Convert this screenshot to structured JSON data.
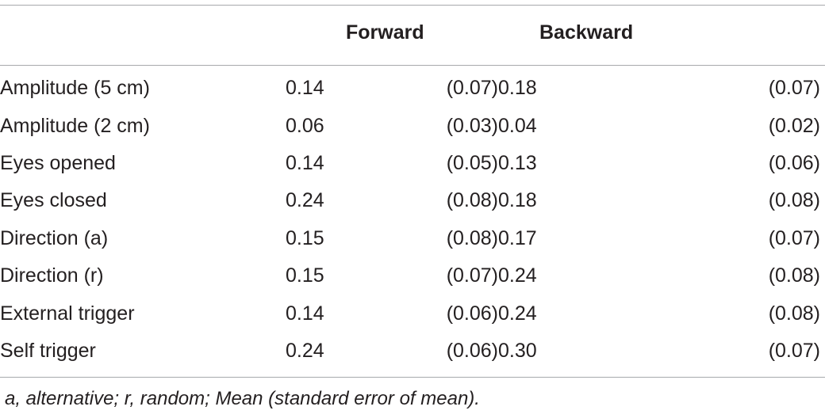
{
  "table": {
    "headers": {
      "row_label": "",
      "forward": "Forward",
      "backward": "Backward"
    },
    "rows": [
      {
        "label": "Amplitude (5 cm)",
        "fw_mean": "0.14",
        "fw_se": "(0.07)",
        "bw_mean": "0.18",
        "bw_se": "(0.07)"
      },
      {
        "label": "Amplitude (2 cm)",
        "fw_mean": "0.06",
        "fw_se": "(0.03)",
        "bw_mean": "0.04",
        "bw_se": "(0.02)"
      },
      {
        "label": "Eyes opened",
        "fw_mean": "0.14",
        "fw_se": "(0.05)",
        "bw_mean": "0.13",
        "bw_se": "(0.06)"
      },
      {
        "label": "Eyes closed",
        "fw_mean": "0.24",
        "fw_se": "(0.08)",
        "bw_mean": "0.18",
        "bw_se": "(0.08)"
      },
      {
        "label": "Direction (a)",
        "fw_mean": "0.15",
        "fw_se": "(0.08)",
        "bw_mean": "0.17",
        "bw_se": "(0.07)"
      },
      {
        "label": "Direction (r)",
        "fw_mean": "0.15",
        "fw_se": "(0.07)",
        "bw_mean": "0.24",
        "bw_se": "(0.08)"
      },
      {
        "label": "External trigger",
        "fw_mean": "0.14",
        "fw_se": "(0.06)",
        "bw_mean": "0.24",
        "bw_se": "(0.08)"
      },
      {
        "label": "Self trigger",
        "fw_mean": "0.24",
        "fw_se": "(0.06)",
        "bw_mean": "0.30",
        "bw_se": "(0.07)"
      }
    ],
    "footnote": "a, alternative; r, random; Mean (standard error of mean)."
  }
}
